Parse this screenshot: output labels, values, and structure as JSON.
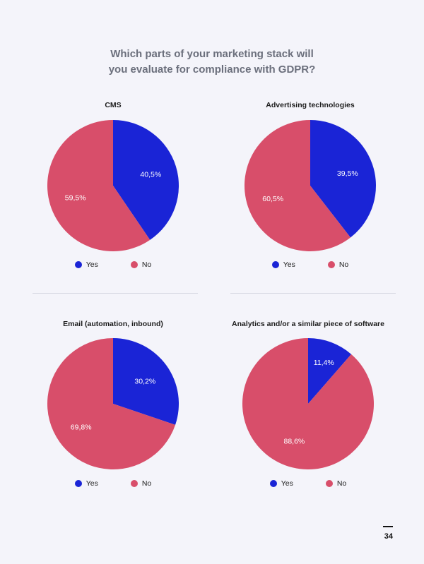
{
  "title_line1": "Which parts of your marketing stack will",
  "title_line2": "you evaluate for compliance with GDPR?",
  "colors": {
    "yes": "#1a24d6",
    "no": "#d84e6a"
  },
  "legend": {
    "yes": "Yes",
    "no": "No"
  },
  "page_number": "34",
  "chart_data": [
    {
      "type": "pie",
      "title": "CMS",
      "slices": [
        {
          "label": "Yes",
          "value": 40.5,
          "text": "40,5%"
        },
        {
          "label": "No",
          "value": 59.5,
          "text": "59,5%"
        }
      ]
    },
    {
      "type": "pie",
      "title": "Advertising technologies",
      "slices": [
        {
          "label": "Yes",
          "value": 39.5,
          "text": "39,5%"
        },
        {
          "label": "No",
          "value": 60.5,
          "text": "60,5%"
        }
      ]
    },
    {
      "type": "pie",
      "title": "Email (automation, inbound)",
      "slices": [
        {
          "label": "Yes",
          "value": 30.2,
          "text": "30,2%"
        },
        {
          "label": "No",
          "value": 69.8,
          "text": "69,8%"
        }
      ]
    },
    {
      "type": "pie",
      "title": "Analytics and/or a similar piece of software",
      "slices": [
        {
          "label": "Yes",
          "value": 11.4,
          "text": "11,4%"
        },
        {
          "label": "No",
          "value": 88.6,
          "text": "88,6%"
        }
      ]
    }
  ]
}
